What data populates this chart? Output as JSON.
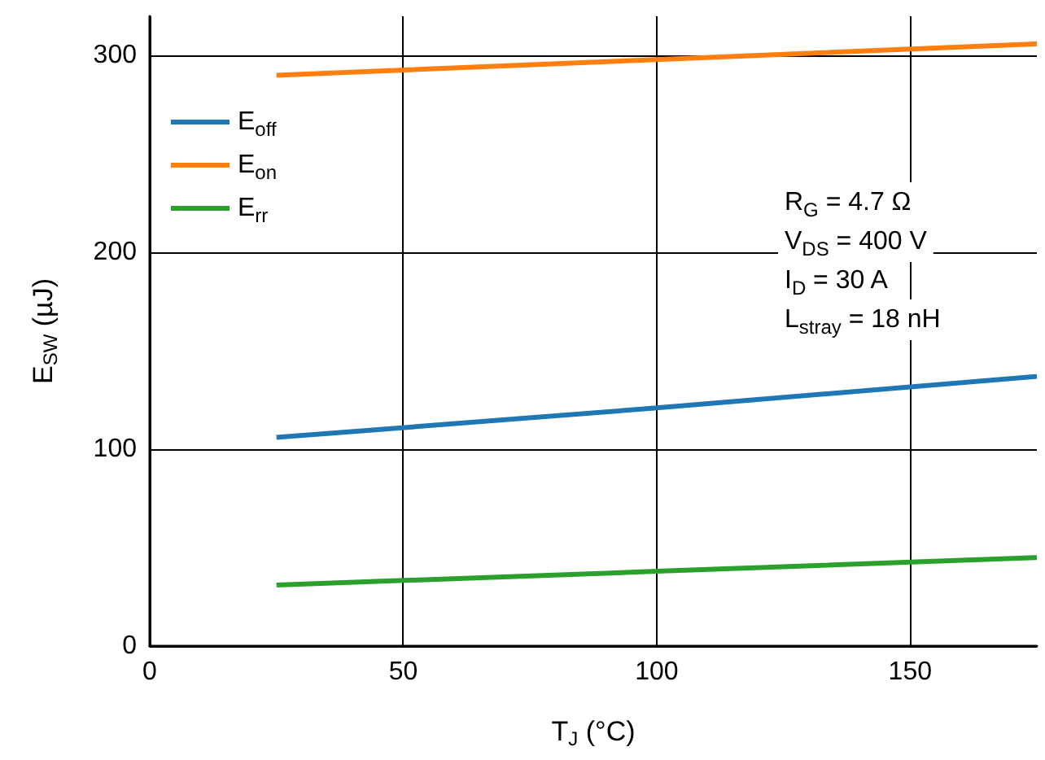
{
  "chart_data": {
    "type": "line",
    "xlabel": "T$_{J}$ (°C)",
    "ylabel": "E$_{SW}$ (µJ)",
    "x": [
      25,
      100,
      175
    ],
    "series": [
      {
        "name": "E$_{off}$",
        "color": "#1f77b4",
        "values": [
          106,
          121,
          137
        ]
      },
      {
        "name": "E$_{on}$",
        "color": "#ff7f0e",
        "values": [
          290,
          298,
          306
        ]
      },
      {
        "name": "E$_{rr}$",
        "color": "#2ca02c",
        "values": [
          31,
          38,
          45
        ]
      }
    ],
    "xlim": [
      0,
      175
    ],
    "xticks": [
      0,
      50,
      100,
      150
    ],
    "ylim": [
      0,
      320
    ],
    "yticks": [
      0,
      100,
      200,
      300
    ],
    "annotations": [
      "R$_{G}$ = 4.7 Ω",
      "V$_{DS}$ = 400 V",
      "I$_{D}$ = 30 A",
      "L$_{stray}$ = 18 nH"
    ],
    "grid": true,
    "legend": "top left",
    "marker": "none",
    "line_style": "solid"
  }
}
